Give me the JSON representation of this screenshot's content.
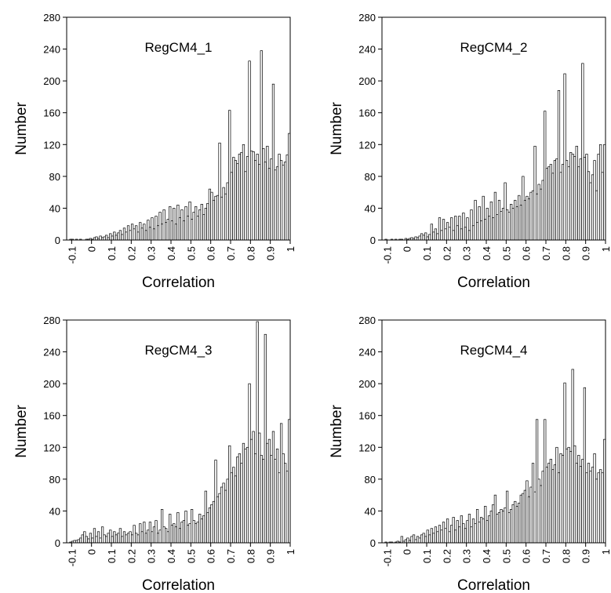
{
  "chart_data": [
    {
      "type": "histogram",
      "title": "RegCM4_1",
      "xlabel": "Correlation",
      "ylabel": "Number",
      "bins": [
        -0.12,
        -0.11,
        -0.1,
        -0.09,
        -0.08,
        -0.07,
        -0.06,
        -0.05,
        -0.04,
        -0.03,
        -0.02,
        -0.01,
        0,
        0.01,
        0.02,
        0.03,
        0.04,
        0.05,
        0.06,
        0.07,
        0.08,
        0.09,
        0.1,
        0.11,
        0.12,
        0.13,
        0.14,
        0.15,
        0.16,
        0.17,
        0.18,
        0.19,
        0.2,
        0.21,
        0.22,
        0.23,
        0.24,
        0.25,
        0.26,
        0.27,
        0.28,
        0.29,
        0.3,
        0.31,
        0.32,
        0.33,
        0.34,
        0.35,
        0.36,
        0.37,
        0.38,
        0.39,
        0.4,
        0.41,
        0.42,
        0.43,
        0.44,
        0.45,
        0.46,
        0.47,
        0.48,
        0.49,
        0.5,
        0.51,
        0.52,
        0.53,
        0.54,
        0.55,
        0.56,
        0.57,
        0.58,
        0.59,
        0.6,
        0.61,
        0.62,
        0.63,
        0.64,
        0.65,
        0.66,
        0.67,
        0.68,
        0.69,
        0.7,
        0.71,
        0.72,
        0.73,
        0.74,
        0.75,
        0.76,
        0.77,
        0.78,
        0.79,
        0.8,
        0.81,
        0.82,
        0.83,
        0.84,
        0.85,
        0.86,
        0.87,
        0.88,
        0.89,
        0.9,
        0.91,
        0.92,
        0.93,
        0.94,
        0.95,
        0.96,
        0.97,
        0.98,
        0.99,
        1
      ],
      "counts": [
        0,
        1,
        1,
        0,
        1,
        0,
        1,
        0,
        0,
        1,
        1,
        2,
        1,
        3,
        4,
        2,
        5,
        3,
        4,
        6,
        3,
        8,
        5,
        10,
        6,
        9,
        12,
        7,
        15,
        10,
        18,
        12,
        20,
        14,
        18,
        10,
        22,
        15,
        20,
        12,
        25,
        16,
        28,
        14,
        30,
        18,
        35,
        20,
        38,
        22,
        26,
        42,
        24,
        40,
        20,
        44,
        28,
        38,
        24,
        42,
        30,
        48,
        26,
        35,
        42,
        30,
        38,
        45,
        32,
        40,
        46,
        64,
        60,
        50,
        55,
        56,
        122,
        54,
        66,
        58,
        72,
        163,
        85,
        104,
        100,
        96,
        108,
        110,
        120,
        86,
        105,
        225,
        112,
        111,
        100,
        108,
        95,
        238,
        115,
        98,
        118,
        90,
        102,
        196,
        88,
        92,
        108,
        100,
        94,
        98,
        107,
        134
      ],
      "xlim": [
        -0.125,
        1
      ],
      "ylim": [
        0,
        280
      ],
      "xticks": [
        -0.1,
        0,
        0.1,
        0.2,
        0.3,
        0.4,
        0.5,
        0.6,
        0.7,
        0.8,
        0.9,
        1
      ],
      "yticks": [
        0,
        40,
        80,
        120,
        160,
        200,
        240,
        280
      ]
    },
    {
      "type": "histogram",
      "title": "RegCM4_2",
      "xlabel": "Correlation",
      "ylabel": "Number",
      "bins": [
        -0.12,
        -0.11,
        -0.1,
        -0.09,
        -0.08,
        -0.07,
        -0.06,
        -0.05,
        -0.04,
        -0.03,
        -0.02,
        -0.01,
        0,
        0.01,
        0.02,
        0.03,
        0.04,
        0.05,
        0.06,
        0.07,
        0.08,
        0.09,
        0.1,
        0.11,
        0.12,
        0.13,
        0.14,
        0.15,
        0.16,
        0.17,
        0.18,
        0.19,
        0.2,
        0.21,
        0.22,
        0.23,
        0.24,
        0.25,
        0.26,
        0.27,
        0.28,
        0.29,
        0.3,
        0.31,
        0.32,
        0.33,
        0.34,
        0.35,
        0.36,
        0.37,
        0.38,
        0.39,
        0.4,
        0.41,
        0.42,
        0.43,
        0.44,
        0.45,
        0.46,
        0.47,
        0.48,
        0.49,
        0.5,
        0.51,
        0.52,
        0.53,
        0.54,
        0.55,
        0.56,
        0.57,
        0.58,
        0.59,
        0.6,
        0.61,
        0.62,
        0.63,
        0.64,
        0.65,
        0.66,
        0.67,
        0.68,
        0.69,
        0.7,
        0.71,
        0.72,
        0.73,
        0.74,
        0.75,
        0.76,
        0.77,
        0.78,
        0.79,
        0.8,
        0.81,
        0.82,
        0.83,
        0.84,
        0.85,
        0.86,
        0.87,
        0.88,
        0.89,
        0.9,
        0.91,
        0.92,
        0.93,
        0.94,
        0.95,
        0.96,
        0.97,
        0.98,
        0.99,
        1
      ],
      "counts": [
        0,
        1,
        0,
        0,
        1,
        0,
        1,
        0,
        1,
        1,
        0,
        2,
        1,
        2,
        3,
        2,
        4,
        3,
        5,
        8,
        6,
        9,
        4,
        7,
        20,
        10,
        14,
        8,
        28,
        12,
        26,
        14,
        22,
        16,
        28,
        12,
        30,
        18,
        30,
        14,
        34,
        16,
        28,
        12,
        38,
        18,
        50,
        22,
        42,
        24,
        55,
        26,
        40,
        30,
        48,
        28,
        60,
        32,
        50,
        36,
        40,
        72,
        38,
        35,
        45,
        40,
        50,
        42,
        56,
        44,
        80,
        50,
        55,
        52,
        60,
        62,
        118,
        58,
        70,
        64,
        75,
        162,
        90,
        92,
        95,
        84,
        100,
        102,
        188,
        85,
        95,
        209,
        100,
        92,
        110,
        108,
        105,
        118,
        92,
        102,
        222,
        104,
        108,
        86,
        72,
        82,
        100,
        62,
        108,
        120,
        85,
        120
      ],
      "xlim": [
        -0.125,
        1
      ],
      "ylim": [
        0,
        280
      ],
      "xticks": [
        -0.1,
        0,
        0.1,
        0.2,
        0.3,
        0.4,
        0.5,
        0.6,
        0.7,
        0.8,
        0.9,
        1
      ],
      "yticks": [
        0,
        40,
        80,
        120,
        160,
        200,
        240,
        280
      ]
    },
    {
      "type": "histogram",
      "title": "RegCM4_3",
      "xlabel": "Correlation",
      "ylabel": "Number",
      "bins": [
        -0.12,
        -0.11,
        -0.1,
        -0.09,
        -0.08,
        -0.07,
        -0.06,
        -0.05,
        -0.04,
        -0.03,
        -0.02,
        -0.01,
        0,
        0.01,
        0.02,
        0.03,
        0.04,
        0.05,
        0.06,
        0.07,
        0.08,
        0.09,
        0.1,
        0.11,
        0.12,
        0.13,
        0.14,
        0.15,
        0.16,
        0.17,
        0.18,
        0.19,
        0.2,
        0.21,
        0.22,
        0.23,
        0.24,
        0.25,
        0.26,
        0.27,
        0.28,
        0.29,
        0.3,
        0.31,
        0.32,
        0.33,
        0.34,
        0.35,
        0.36,
        0.37,
        0.38,
        0.39,
        0.4,
        0.41,
        0.42,
        0.43,
        0.44,
        0.45,
        0.46,
        0.47,
        0.48,
        0.49,
        0.5,
        0.51,
        0.52,
        0.53,
        0.54,
        0.55,
        0.56,
        0.57,
        0.58,
        0.59,
        0.6,
        0.61,
        0.62,
        0.63,
        0.64,
        0.65,
        0.66,
        0.67,
        0.68,
        0.69,
        0.7,
        0.71,
        0.72,
        0.73,
        0.74,
        0.75,
        0.76,
        0.77,
        0.78,
        0.79,
        0.8,
        0.81,
        0.82,
        0.83,
        0.84,
        0.85,
        0.86,
        0.87,
        0.88,
        0.89,
        0.9,
        0.91,
        0.92,
        0.93,
        0.94,
        0.95,
        0.96,
        0.97,
        0.98,
        0.99,
        1
      ],
      "counts": [
        0,
        1,
        2,
        3,
        3,
        4,
        6,
        10,
        14,
        8,
        5,
        12,
        6,
        18,
        8,
        14,
        6,
        20,
        10,
        8,
        12,
        16,
        8,
        14,
        10,
        12,
        18,
        8,
        14,
        10,
        12,
        14,
        10,
        22,
        12,
        10,
        24,
        14,
        26,
        12,
        16,
        26,
        14,
        20,
        28,
        12,
        16,
        42,
        20,
        18,
        14,
        36,
        22,
        24,
        20,
        38,
        18,
        26,
        28,
        40,
        22,
        24,
        42,
        28,
        24,
        26,
        36,
        30,
        34,
        65,
        38,
        44,
        48,
        52,
        104,
        58,
        62,
        70,
        75,
        66,
        80,
        122,
        88,
        95,
        84,
        108,
        112,
        100,
        125,
        118,
        120,
        200,
        130,
        140,
        112,
        278,
        138,
        110,
        105,
        262,
        125,
        130,
        110,
        140,
        105,
        118,
        88,
        150,
        112,
        100,
        90,
        155
      ],
      "xlim": [
        -0.125,
        1
      ],
      "ylim": [
        0,
        280
      ],
      "xticks": [
        -0.1,
        0,
        0.1,
        0.2,
        0.3,
        0.4,
        0.5,
        0.6,
        0.7,
        0.8,
        0.9,
        1
      ],
      "yticks": [
        0,
        40,
        80,
        120,
        160,
        200,
        240,
        280
      ]
    },
    {
      "type": "histogram",
      "title": "RegCM4_4",
      "xlabel": "Correlation",
      "ylabel": "Number",
      "bins": [
        -0.12,
        -0.11,
        -0.1,
        -0.09,
        -0.08,
        -0.07,
        -0.06,
        -0.05,
        -0.04,
        -0.03,
        -0.02,
        -0.01,
        0,
        0.01,
        0.02,
        0.03,
        0.04,
        0.05,
        0.06,
        0.07,
        0.08,
        0.09,
        0.1,
        0.11,
        0.12,
        0.13,
        0.14,
        0.15,
        0.16,
        0.17,
        0.18,
        0.19,
        0.2,
        0.21,
        0.22,
        0.23,
        0.24,
        0.25,
        0.26,
        0.27,
        0.28,
        0.29,
        0.3,
        0.31,
        0.32,
        0.33,
        0.34,
        0.35,
        0.36,
        0.37,
        0.38,
        0.39,
        0.4,
        0.41,
        0.42,
        0.43,
        0.44,
        0.45,
        0.46,
        0.47,
        0.48,
        0.49,
        0.5,
        0.51,
        0.52,
        0.53,
        0.54,
        0.55,
        0.56,
        0.57,
        0.58,
        0.59,
        0.6,
        0.61,
        0.62,
        0.63,
        0.64,
        0.65,
        0.66,
        0.67,
        0.68,
        0.69,
        0.7,
        0.71,
        0.72,
        0.73,
        0.74,
        0.75,
        0.76,
        0.77,
        0.78,
        0.79,
        0.8,
        0.81,
        0.82,
        0.83,
        0.84,
        0.85,
        0.86,
        0.87,
        0.88,
        0.89,
        0.9,
        0.91,
        0.92,
        0.93,
        0.94,
        0.95,
        0.96,
        0.97,
        0.98,
        0.99,
        1
      ],
      "counts": [
        0,
        1,
        0,
        1,
        1,
        0,
        1,
        2,
        1,
        8,
        2,
        4,
        6,
        3,
        8,
        10,
        4,
        8,
        6,
        10,
        12,
        8,
        16,
        10,
        18,
        12,
        20,
        14,
        22,
        16,
        26,
        18,
        30,
        14,
        22,
        32,
        16,
        28,
        20,
        34,
        24,
        18,
        28,
        36,
        20,
        30,
        24,
        42,
        26,
        32,
        30,
        46,
        28,
        34,
        40,
        48,
        60,
        36,
        38,
        42,
        40,
        44,
        65,
        38,
        42,
        48,
        52,
        46,
        50,
        60,
        62,
        66,
        78,
        58,
        70,
        100,
        64,
        155,
        80,
        72,
        90,
        155,
        95,
        100,
        105,
        92,
        98,
        120,
        88,
        112,
        110,
        201,
        118,
        120,
        115,
        218,
        122,
        100,
        110,
        96,
        105,
        195,
        88,
        100,
        90,
        95,
        112,
        80,
        88,
        92,
        88,
        130
      ],
      "xlim": [
        -0.125,
        1
      ],
      "ylim": [
        0,
        280
      ],
      "xticks": [
        -0.1,
        0,
        0.1,
        0.2,
        0.3,
        0.4,
        0.5,
        0.6,
        0.7,
        0.8,
        0.9,
        1
      ],
      "yticks": [
        0,
        40,
        80,
        120,
        160,
        200,
        240,
        280
      ]
    }
  ]
}
